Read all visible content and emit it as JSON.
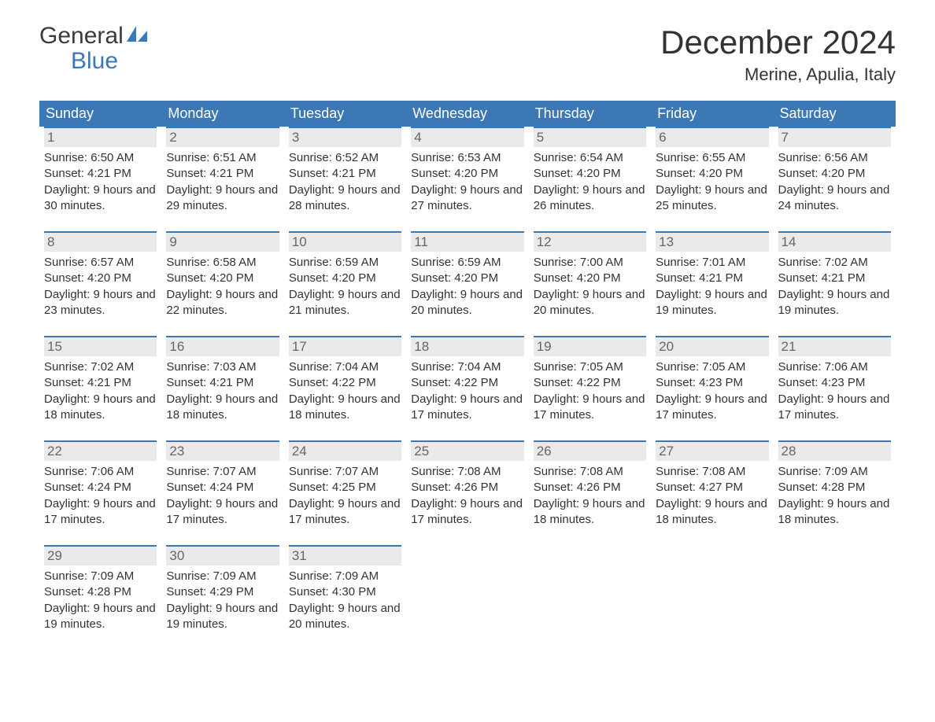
{
  "logo": {
    "text_top": "General",
    "text_bottom": "Blue",
    "accent_color": "#3c78b5",
    "text_color": "#3b3b3b"
  },
  "title": "December 2024",
  "location": "Merine, Apulia, Italy",
  "colors": {
    "header_bg": "#3c78b5",
    "header_text": "#ffffff",
    "daynum_bg": "#eaeaea",
    "daynum_border": "#3c78b5",
    "body_text": "#333333",
    "page_bg": "#ffffff"
  },
  "typography": {
    "title_fontsize": 42,
    "location_fontsize": 22,
    "weekday_fontsize": 18,
    "daynum_fontsize": 17,
    "body_fontsize": 15
  },
  "weekdays": [
    "Sunday",
    "Monday",
    "Tuesday",
    "Wednesday",
    "Thursday",
    "Friday",
    "Saturday"
  ],
  "weeks": [
    [
      {
        "day": 1,
        "sunrise": "6:50 AM",
        "sunset": "4:21 PM",
        "daylight": "9 hours and 30 minutes."
      },
      {
        "day": 2,
        "sunrise": "6:51 AM",
        "sunset": "4:21 PM",
        "daylight": "9 hours and 29 minutes."
      },
      {
        "day": 3,
        "sunrise": "6:52 AM",
        "sunset": "4:21 PM",
        "daylight": "9 hours and 28 minutes."
      },
      {
        "day": 4,
        "sunrise": "6:53 AM",
        "sunset": "4:20 PM",
        "daylight": "9 hours and 27 minutes."
      },
      {
        "day": 5,
        "sunrise": "6:54 AM",
        "sunset": "4:20 PM",
        "daylight": "9 hours and 26 minutes."
      },
      {
        "day": 6,
        "sunrise": "6:55 AM",
        "sunset": "4:20 PM",
        "daylight": "9 hours and 25 minutes."
      },
      {
        "day": 7,
        "sunrise": "6:56 AM",
        "sunset": "4:20 PM",
        "daylight": "9 hours and 24 minutes."
      }
    ],
    [
      {
        "day": 8,
        "sunrise": "6:57 AM",
        "sunset": "4:20 PM",
        "daylight": "9 hours and 23 minutes."
      },
      {
        "day": 9,
        "sunrise": "6:58 AM",
        "sunset": "4:20 PM",
        "daylight": "9 hours and 22 minutes."
      },
      {
        "day": 10,
        "sunrise": "6:59 AM",
        "sunset": "4:20 PM",
        "daylight": "9 hours and 21 minutes."
      },
      {
        "day": 11,
        "sunrise": "6:59 AM",
        "sunset": "4:20 PM",
        "daylight": "9 hours and 20 minutes."
      },
      {
        "day": 12,
        "sunrise": "7:00 AM",
        "sunset": "4:20 PM",
        "daylight": "9 hours and 20 minutes."
      },
      {
        "day": 13,
        "sunrise": "7:01 AM",
        "sunset": "4:21 PM",
        "daylight": "9 hours and 19 minutes."
      },
      {
        "day": 14,
        "sunrise": "7:02 AM",
        "sunset": "4:21 PM",
        "daylight": "9 hours and 19 minutes."
      }
    ],
    [
      {
        "day": 15,
        "sunrise": "7:02 AM",
        "sunset": "4:21 PM",
        "daylight": "9 hours and 18 minutes."
      },
      {
        "day": 16,
        "sunrise": "7:03 AM",
        "sunset": "4:21 PM",
        "daylight": "9 hours and 18 minutes."
      },
      {
        "day": 17,
        "sunrise": "7:04 AM",
        "sunset": "4:22 PM",
        "daylight": "9 hours and 18 minutes."
      },
      {
        "day": 18,
        "sunrise": "7:04 AM",
        "sunset": "4:22 PM",
        "daylight": "9 hours and 17 minutes."
      },
      {
        "day": 19,
        "sunrise": "7:05 AM",
        "sunset": "4:22 PM",
        "daylight": "9 hours and 17 minutes."
      },
      {
        "day": 20,
        "sunrise": "7:05 AM",
        "sunset": "4:23 PM",
        "daylight": "9 hours and 17 minutes."
      },
      {
        "day": 21,
        "sunrise": "7:06 AM",
        "sunset": "4:23 PM",
        "daylight": "9 hours and 17 minutes."
      }
    ],
    [
      {
        "day": 22,
        "sunrise": "7:06 AM",
        "sunset": "4:24 PM",
        "daylight": "9 hours and 17 minutes."
      },
      {
        "day": 23,
        "sunrise": "7:07 AM",
        "sunset": "4:24 PM",
        "daylight": "9 hours and 17 minutes."
      },
      {
        "day": 24,
        "sunrise": "7:07 AM",
        "sunset": "4:25 PM",
        "daylight": "9 hours and 17 minutes."
      },
      {
        "day": 25,
        "sunrise": "7:08 AM",
        "sunset": "4:26 PM",
        "daylight": "9 hours and 17 minutes."
      },
      {
        "day": 26,
        "sunrise": "7:08 AM",
        "sunset": "4:26 PM",
        "daylight": "9 hours and 18 minutes."
      },
      {
        "day": 27,
        "sunrise": "7:08 AM",
        "sunset": "4:27 PM",
        "daylight": "9 hours and 18 minutes."
      },
      {
        "day": 28,
        "sunrise": "7:09 AM",
        "sunset": "4:28 PM",
        "daylight": "9 hours and 18 minutes."
      }
    ],
    [
      {
        "day": 29,
        "sunrise": "7:09 AM",
        "sunset": "4:28 PM",
        "daylight": "9 hours and 19 minutes."
      },
      {
        "day": 30,
        "sunrise": "7:09 AM",
        "sunset": "4:29 PM",
        "daylight": "9 hours and 19 minutes."
      },
      {
        "day": 31,
        "sunrise": "7:09 AM",
        "sunset": "4:30 PM",
        "daylight": "9 hours and 20 minutes."
      },
      null,
      null,
      null,
      null
    ]
  ],
  "labels": {
    "sunrise_prefix": "Sunrise: ",
    "sunset_prefix": "Sunset: ",
    "daylight_prefix": "Daylight: "
  }
}
